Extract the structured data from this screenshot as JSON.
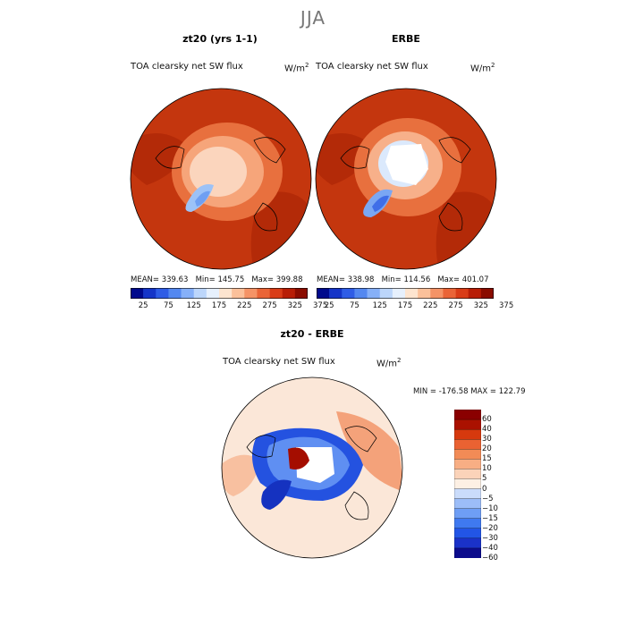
{
  "season": "JJA",
  "variable_label": "TOA clearsky net SW flux",
  "units": {
    "base": "W/m",
    "exponent": "2"
  },
  "colors": {
    "abs_scale": [
      "#000a8c",
      "#1535c8",
      "#2f5de6",
      "#5488f0",
      "#86b0f8",
      "#bcd6fb",
      "#e6f0fd",
      "#fde4cf",
      "#fbc09a",
      "#f59366",
      "#ea6437",
      "#d93c17",
      "#b81d06",
      "#8a0c00"
    ],
    "diff_scale": [
      "#0c0c8c",
      "#1a32c8",
      "#2255e6",
      "#3f79f0",
      "#6e9ef5",
      "#9cbdf8",
      "#cadcfb",
      "#fdf0e4",
      "#fbd3b9",
      "#f8ae84",
      "#f28b56",
      "#ea6232",
      "#d6390e",
      "#aa1100",
      "#8a0000"
    ],
    "ocean_fill": "#c4360e",
    "land_line": "#000000"
  },
  "chart_data": [
    {
      "type": "heatmap",
      "title": "zt20 (yrs 1-1)",
      "projection": "north polar stereographic",
      "stats": {
        "mean_label": "MEAN=",
        "mean": "339.63",
        "min_label": "Min=",
        "min": "145.75",
        "max_label": "Max=",
        "max": "399.88"
      },
      "colorbar": {
        "levels": [
          25,
          50,
          75,
          100,
          125,
          150,
          175,
          200,
          225,
          250,
          275,
          300,
          325,
          350,
          375
        ],
        "tick_labels": [
          "25",
          "75",
          "125",
          "175",
          "225",
          "275",
          "325",
          "375"
        ]
      }
    },
    {
      "type": "heatmap",
      "title": "ERBE",
      "projection": "north polar stereographic",
      "stats": {
        "mean_label": "MEAN=",
        "mean": "338.98",
        "min_label": "Min=",
        "min": "114.56",
        "max_label": "Max=",
        "max": "401.07"
      },
      "colorbar": {
        "levels": [
          25,
          50,
          75,
          100,
          125,
          150,
          175,
          200,
          225,
          250,
          275,
          300,
          325,
          350,
          375
        ],
        "tick_labels": [
          "25",
          "75",
          "125",
          "175",
          "225",
          "275",
          "325",
          "375"
        ]
      }
    },
    {
      "type": "heatmap",
      "title": "zt20 - ERBE",
      "projection": "north polar stereographic",
      "stats": {
        "min_label": "MIN =",
        "min": "-176.58",
        "max_label": "MAX =",
        "max": "122.79"
      },
      "colorbar": {
        "tick_labels": [
          "60",
          "40",
          "30",
          "20",
          "15",
          "10",
          "5",
          "0",
          "−5",
          "−10",
          "−15",
          "−20",
          "−30",
          "−40",
          "−60"
        ]
      }
    }
  ]
}
